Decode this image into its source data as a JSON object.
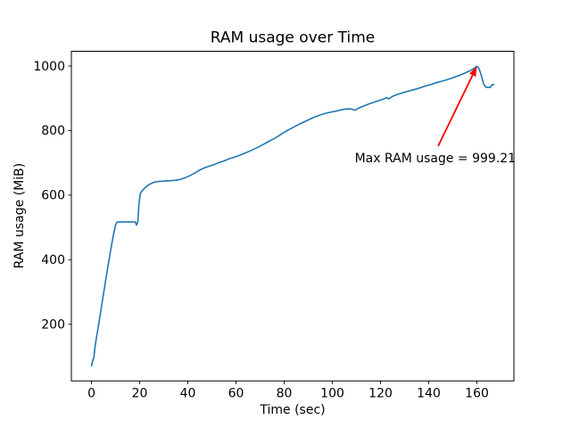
{
  "figure": {
    "background_color": "#ffffff"
  },
  "chart_data": {
    "type": "line",
    "title": "RAM usage over Time",
    "xlabel": "Time (sec)",
    "ylabel": "RAM usage (MiB)",
    "grid": false,
    "legend": null,
    "xlim": [
      -8.35,
      175.35
    ],
    "ylim": [
      24.6,
      1045.6
    ],
    "x_ticks": [
      0,
      20,
      40,
      60,
      80,
      100,
      120,
      140,
      160
    ],
    "y_ticks": [
      200,
      400,
      600,
      800,
      1000
    ],
    "axis_color": "#000000",
    "max_value": 999.21,
    "series": [
      {
        "name": "RAM usage",
        "color": "#1f77b4",
        "points": [
          [
            0,
            71
          ],
          [
            0.6,
            90
          ],
          [
            1,
            96
          ],
          [
            1.4,
            126
          ],
          [
            2,
            155
          ],
          [
            3,
            200
          ],
          [
            4,
            247
          ],
          [
            5,
            294
          ],
          [
            6,
            341
          ],
          [
            7,
            386
          ],
          [
            8,
            430
          ],
          [
            9,
            472
          ],
          [
            10,
            508
          ],
          [
            10.6,
            516
          ],
          [
            11,
            517
          ],
          [
            17,
            517
          ],
          [
            18.2,
            517
          ],
          [
            18.7,
            507
          ],
          [
            19.2,
            516
          ],
          [
            19.7,
            570
          ],
          [
            20.2,
            604
          ],
          [
            21,
            613
          ],
          [
            22,
            621
          ],
          [
            23,
            628
          ],
          [
            24,
            633
          ],
          [
            25,
            637
          ],
          [
            26,
            640
          ],
          [
            27.5,
            642
          ],
          [
            29,
            643
          ],
          [
            31,
            644
          ],
          [
            33,
            645
          ],
          [
            35,
            646
          ],
          [
            37,
            649
          ],
          [
            39,
            654
          ],
          [
            41,
            661
          ],
          [
            43,
            669
          ],
          [
            45,
            678
          ],
          [
            47,
            685
          ],
          [
            49,
            690
          ],
          [
            51,
            695
          ],
          [
            53,
            701
          ],
          [
            55,
            706
          ],
          [
            57,
            712
          ],
          [
            59,
            717
          ],
          [
            61,
            722
          ],
          [
            63,
            728
          ],
          [
            65,
            734
          ],
          [
            67,
            741
          ],
          [
            69,
            748
          ],
          [
            71,
            756
          ],
          [
            73,
            764
          ],
          [
            75,
            772
          ],
          [
            77,
            780
          ],
          [
            79,
            790
          ],
          [
            80.5,
            797
          ],
          [
            82,
            803
          ],
          [
            84,
            811
          ],
          [
            86,
            819
          ],
          [
            88,
            826
          ],
          [
            90,
            833
          ],
          [
            92,
            840
          ],
          [
            94,
            846
          ],
          [
            96,
            851
          ],
          [
            98,
            855
          ],
          [
            100,
            858
          ],
          [
            102,
            861
          ],
          [
            104,
            865
          ],
          [
            106,
            867
          ],
          [
            108,
            867
          ],
          [
            109.5,
            863
          ],
          [
            111,
            870
          ],
          [
            113,
            876
          ],
          [
            115,
            882
          ],
          [
            117,
            887
          ],
          [
            119,
            892
          ],
          [
            121,
            897
          ],
          [
            122.5,
            902
          ],
          [
            123.5,
            898
          ],
          [
            125,
            906
          ],
          [
            127,
            912
          ],
          [
            129,
            917
          ],
          [
            131,
            921
          ],
          [
            133,
            925
          ],
          [
            135,
            929
          ],
          [
            137,
            934
          ],
          [
            139,
            939
          ],
          [
            141,
            943
          ],
          [
            143,
            948
          ],
          [
            145,
            952
          ],
          [
            147,
            956
          ],
          [
            149,
            961
          ],
          [
            151,
            966
          ],
          [
            153,
            972
          ],
          [
            155,
            978
          ],
          [
            157,
            985
          ],
          [
            158.5,
            991
          ],
          [
            159.6,
            997
          ],
          [
            160,
            999.21
          ],
          [
            160.8,
            993
          ],
          [
            161.8,
            972
          ],
          [
            162.8,
            944
          ],
          [
            163.5,
            936
          ],
          [
            164,
            934
          ],
          [
            165.7,
            934
          ],
          [
            166.1,
            941
          ],
          [
            167,
            943
          ]
        ]
      }
    ],
    "annotation": {
      "text": "Max RAM usage = 999.21",
      "color": "#ff0000",
      "text_at": [
        142.7,
        716
      ],
      "arrow_from": [
        143.9,
        752
      ],
      "arrow_to": [
        160,
        999.21
      ]
    }
  }
}
